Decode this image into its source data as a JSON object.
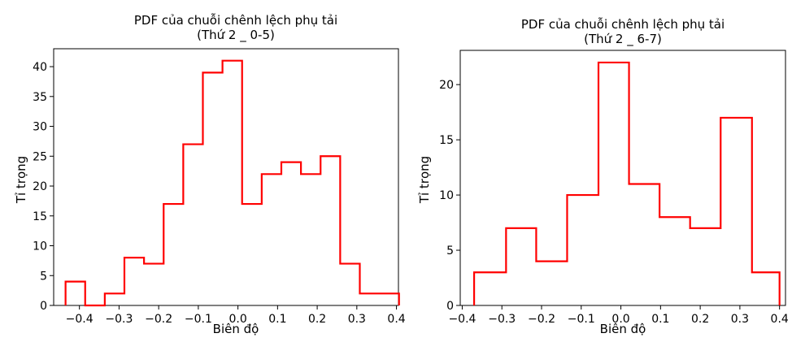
{
  "chart_data": [
    {
      "type": "histogram",
      "title_line1": "PDF của chuỗi chênh lệch phụ tải",
      "title_line2": "(Thứ 2 _ 0-5)",
      "xlabel": "Biên độ",
      "ylabel": "Tỉ trọng",
      "xlim": [
        -0.465,
        0.405
      ],
      "ylim": [
        0,
        43
      ],
      "xticks": [
        -0.4,
        -0.3,
        -0.2,
        -0.1,
        0.0,
        0.1,
        0.2,
        0.3,
        0.4
      ],
      "xtick_labels": [
        "−0.4",
        "−0.3",
        "−0.2",
        "−0.1",
        "0.0",
        "0.1",
        "0.2",
        "0.3",
        "0.4"
      ],
      "yticks": [
        0,
        5,
        10,
        15,
        20,
        25,
        30,
        35,
        40
      ],
      "ytick_labels": [
        "0",
        "5",
        "10",
        "15",
        "20",
        "25",
        "30",
        "35",
        "40"
      ],
      "bin_edges": [
        -0.435,
        -0.3855,
        -0.336,
        -0.2865,
        -0.237,
        -0.1875,
        -0.138,
        -0.0885,
        -0.039,
        0.0105,
        0.06,
        0.1095,
        0.159,
        0.2085,
        0.258,
        0.3075,
        0.357,
        0.4065
      ],
      "values": [
        4,
        0,
        2,
        8,
        7,
        17,
        27,
        39,
        41,
        17,
        22,
        24,
        22,
        25,
        7,
        2,
        2
      ],
      "color": "#ff0000",
      "grid": false
    },
    {
      "type": "histogram",
      "title_line1": "PDF của chuỗi chênh lệch phụ tải",
      "title_line2": "(Thứ 2 _ 6-7)",
      "xlabel": "Biên độ",
      "ylabel": "Tỉ trọng",
      "xlim": [
        -0.405,
        0.415
      ],
      "ylim": [
        0,
        23.1
      ],
      "xticks": [
        -0.4,
        -0.3,
        -0.2,
        -0.1,
        0.0,
        0.1,
        0.2,
        0.3,
        0.4
      ],
      "xtick_labels": [
        "−0.4",
        "−0.3",
        "−0.2",
        "−0.1",
        "0.0",
        "0.1",
        "0.2",
        "0.3",
        "0.4"
      ],
      "yticks": [
        0,
        5,
        10,
        15,
        20
      ],
      "ytick_labels": [
        "0",
        "5",
        "10",
        "15",
        "20"
      ],
      "bin_edges": [
        -0.37,
        -0.2895,
        -0.2135,
        -0.1355,
        -0.0565,
        0.0205,
        0.0975,
        0.1745,
        0.2515,
        0.3305,
        0.4
      ],
      "values": [
        3,
        7,
        4,
        10,
        22,
        11,
        8,
        7,
        17,
        3
      ],
      "color": "#ff0000",
      "grid": false
    }
  ]
}
